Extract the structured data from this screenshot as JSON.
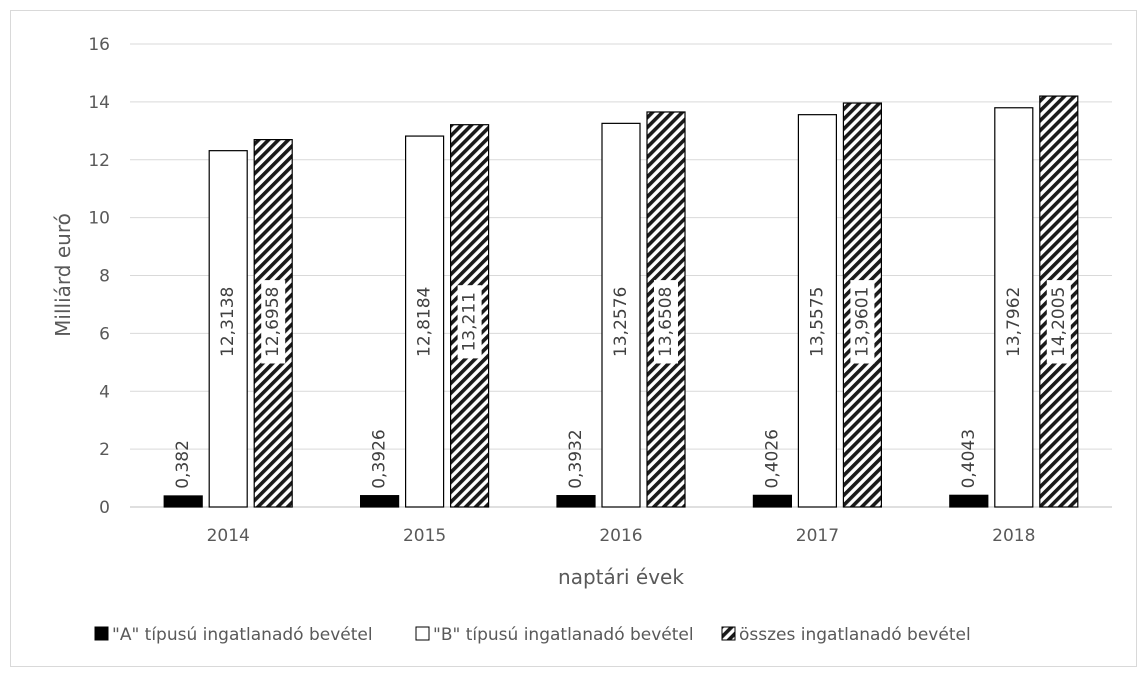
{
  "chart_data": {
    "type": "bar",
    "categories": [
      "2014",
      "2015",
      "2016",
      "2017",
      "2018"
    ],
    "series": [
      {
        "name": "\"A\" típusú ingatlanadó bevétel",
        "values": [
          0.382,
          0.3926,
          0.3932,
          0.4026,
          0.4043
        ],
        "labels": [
          "0,382",
          "0,3926",
          "0,3932",
          "0,4026",
          "0,4043"
        ],
        "fill": "#000000",
        "pattern": "solid"
      },
      {
        "name": "\"B\" típusú ingatlanadó bevétel",
        "values": [
          12.3138,
          12.8184,
          13.2576,
          13.5575,
          13.7962
        ],
        "labels": [
          "12,3138",
          "12,8184",
          "13,2576",
          "13,5575",
          "13,7962"
        ],
        "fill": "#ffffff",
        "pattern": "outline"
      },
      {
        "name": "összes ingatlanadó bevétel",
        "values": [
          12.6958,
          13.211,
          13.6508,
          13.9601,
          14.2005
        ],
        "labels": [
          "12,6958",
          "13,211",
          "13,6508",
          "13,9601",
          "14,2005"
        ],
        "fill": "#000000",
        "pattern": "diagonal-stripes"
      }
    ],
    "title": "",
    "xlabel": "naptári évek",
    "ylabel": "Milliárd euró",
    "ylim": [
      0,
      16
    ],
    "yticks": [
      "0",
      "2",
      "4",
      "6",
      "8",
      "10",
      "12",
      "14",
      "16"
    ],
    "grid": true,
    "legend": "bottom"
  }
}
